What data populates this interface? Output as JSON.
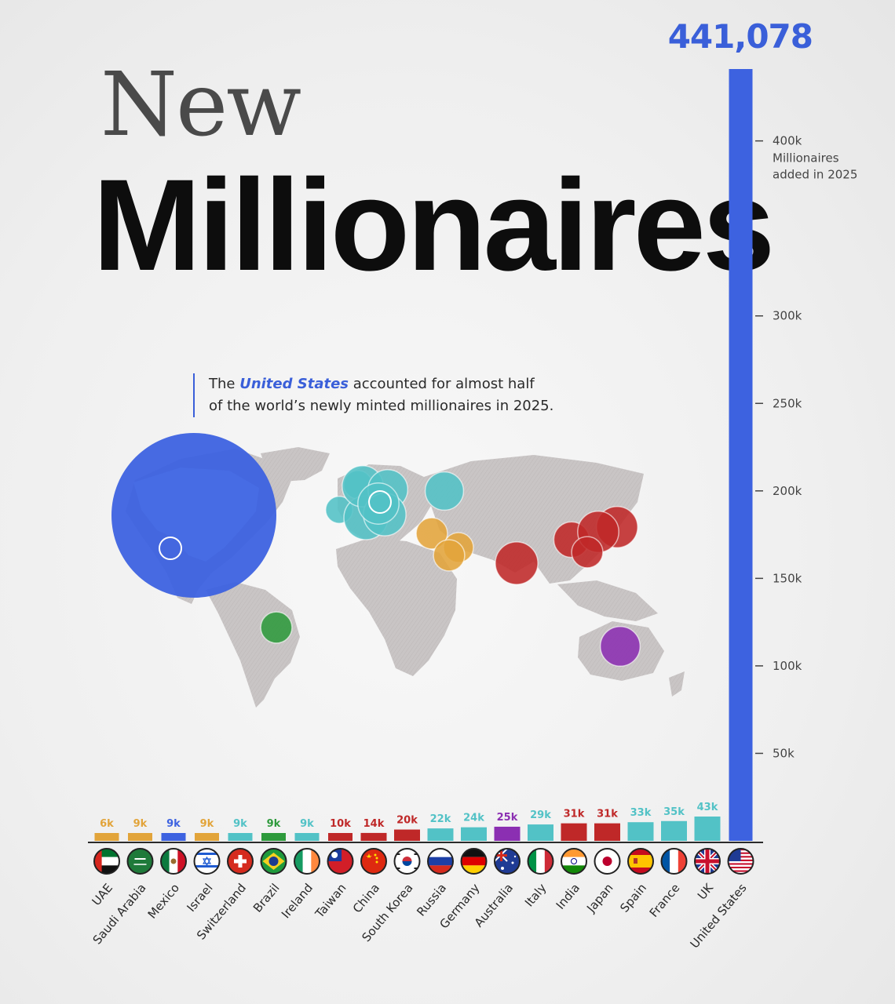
{
  "title": {
    "line1": "New",
    "line2": "Millionaires"
  },
  "top_value_label": "441,078",
  "annotation": {
    "pre": "The ",
    "highlight": "United States",
    "post1": " accounted for almost half",
    "line2": "of the world’s newly minted millionaires in 2025."
  },
  "axis_label_lines": [
    "Millionaires",
    "added in 2025"
  ],
  "colors": {
    "blue": "#3d62e0",
    "teal": "#52c2c6",
    "red": "#bf2828",
    "orange": "#e2a43a",
    "green": "#2e9a3c",
    "purple": "#8b2fb2",
    "map": "#c8c4c4"
  },
  "chart_data": {
    "type": "bar",
    "ylabel": "Millionaires added in 2025",
    "ylim": [
      0,
      441078
    ],
    "yticks": [
      {
        "value": 400000,
        "label": "400k"
      },
      {
        "value": 300000,
        "label": "300k"
      },
      {
        "value": 250000,
        "label": "250k"
      },
      {
        "value": 200000,
        "label": "200k"
      },
      {
        "value": 150000,
        "label": "150k"
      },
      {
        "value": 100000,
        "label": "100k"
      },
      {
        "value": 50000,
        "label": "50k"
      }
    ],
    "bars": [
      {
        "country": "UAE",
        "value": 6000,
        "label": "6k",
        "color": "orange",
        "flag": "uae-flag-icon"
      },
      {
        "country": "Saudi Arabia",
        "value": 9000,
        "label": "9k",
        "color": "orange",
        "flag": "saudi-arabia-flag-icon"
      },
      {
        "country": "Mexico",
        "value": 9000,
        "label": "9k",
        "color": "blue",
        "flag": "mexico-flag-icon"
      },
      {
        "country": "Israel",
        "value": 9000,
        "label": "9k",
        "color": "orange",
        "flag": "israel-flag-icon"
      },
      {
        "country": "Switzerland",
        "value": 9000,
        "label": "9k",
        "color": "teal",
        "flag": "switzerland-flag-icon"
      },
      {
        "country": "Brazil",
        "value": 9000,
        "label": "9k",
        "color": "green",
        "flag": "brazil-flag-icon"
      },
      {
        "country": "Ireland",
        "value": 9000,
        "label": "9k",
        "color": "teal",
        "flag": "ireland-flag-icon"
      },
      {
        "country": "Taiwan",
        "value": 10000,
        "label": "10k",
        "color": "red",
        "flag": "taiwan-flag-icon"
      },
      {
        "country": "China",
        "value": 14000,
        "label": "14k",
        "color": "red",
        "flag": "china-flag-icon"
      },
      {
        "country": "South Korea",
        "value": 20000,
        "label": "20k",
        "color": "red",
        "flag": "south-korea-flag-icon"
      },
      {
        "country": "Russia",
        "value": 22000,
        "label": "22k",
        "color": "teal",
        "flag": "russia-flag-icon"
      },
      {
        "country": "Germany",
        "value": 24000,
        "label": "24k",
        "color": "teal",
        "flag": "germany-flag-icon"
      },
      {
        "country": "Australia",
        "value": 25000,
        "label": "25k",
        "color": "purple",
        "flag": "australia-flag-icon"
      },
      {
        "country": "Italy",
        "value": 29000,
        "label": "29k",
        "color": "teal",
        "flag": "italy-flag-icon"
      },
      {
        "country": "India",
        "value": 31000,
        "label": "31k",
        "color": "red",
        "flag": "india-flag-icon"
      },
      {
        "country": "Japan",
        "value": 31000,
        "label": "31k",
        "color": "red",
        "flag": "japan-flag-icon"
      },
      {
        "country": "Spain",
        "value": 33000,
        "label": "33k",
        "color": "teal",
        "flag": "spain-flag-icon"
      },
      {
        "country": "France",
        "value": 35000,
        "label": "35k",
        "color": "teal",
        "flag": "france-flag-icon"
      },
      {
        "country": "UK",
        "value": 43000,
        "label": "43k",
        "color": "teal",
        "flag": "uk-flag-icon"
      },
      {
        "country": "United States",
        "value": 441078,
        "label": "441,078",
        "color": "blue",
        "flag": "united-states-flag-icon"
      }
    ]
  }
}
